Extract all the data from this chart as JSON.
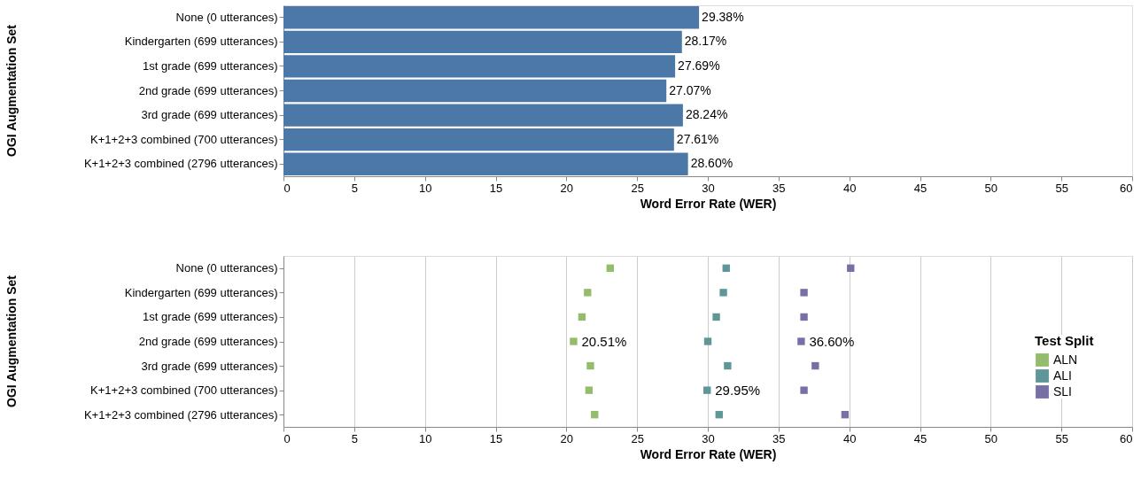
{
  "chart_data": [
    {
      "type": "bar",
      "orientation": "horizontal",
      "ylabel": "OGI Augmentation Set",
      "xlabel": "Word Error Rate (WER)",
      "categories": [
        "None (0 utterances)",
        "Kindergarten (699 utterances)",
        "1st grade (699 utterances)",
        "2nd grade (699 utterances)",
        "3rd grade (699 utterances)",
        "K+1+2+3 combined (700 utterances)",
        "K+1+2+3 combined (2796 utterances)"
      ],
      "values": [
        29.38,
        28.17,
        27.69,
        27.07,
        28.24,
        27.61,
        28.6
      ],
      "value_labels": [
        "29.38%",
        "28.17%",
        "27.69%",
        "27.07%",
        "28.24%",
        "27.61%",
        "28.60%"
      ],
      "color": "#4c78a8",
      "xlim": [
        0,
        60
      ],
      "xticks": [
        0,
        5,
        10,
        15,
        20,
        25,
        30,
        35,
        40,
        45,
        50,
        55,
        60
      ],
      "grid": false
    },
    {
      "type": "scatter",
      "orientation": "horizontal",
      "ylabel": "OGI Augmentation Set",
      "xlabel": "Word Error Rate (WER)",
      "legend_title": "Test Split",
      "categories": [
        "None (0 utterances)",
        "Kindergarten (699 utterances)",
        "1st grade (699 utterances)",
        "2nd grade (699 utterances)",
        "3rd grade (699 utterances)",
        "K+1+2+3 combined (700 utterances)",
        "K+1+2+3 combined (2796 utterances)"
      ],
      "series": [
        {
          "name": "ALN",
          "color": "#93bd6b",
          "values": [
            23.1,
            21.5,
            21.1,
            20.51,
            21.7,
            21.6,
            22.0
          ],
          "value_labels": [
            null,
            null,
            null,
            "20.51%",
            null,
            null,
            null
          ]
        },
        {
          "name": "ALI",
          "color": "#5f9697",
          "values": [
            31.3,
            31.1,
            30.6,
            30.0,
            31.4,
            29.95,
            30.8
          ],
          "value_labels": [
            null,
            null,
            null,
            null,
            null,
            "29.95%",
            null
          ]
        },
        {
          "name": "SLI",
          "color": "#7570a6",
          "values": [
            40.1,
            36.8,
            36.8,
            36.6,
            37.6,
            36.8,
            39.7
          ],
          "value_labels": [
            null,
            null,
            null,
            "36.60%",
            null,
            null,
            null
          ]
        }
      ],
      "marker": "square",
      "legend": "right",
      "xlim": [
        0,
        60
      ],
      "xticks": [
        0,
        5,
        10,
        15,
        20,
        25,
        30,
        35,
        40,
        45,
        50,
        55,
        60
      ],
      "grid": "x"
    }
  ]
}
